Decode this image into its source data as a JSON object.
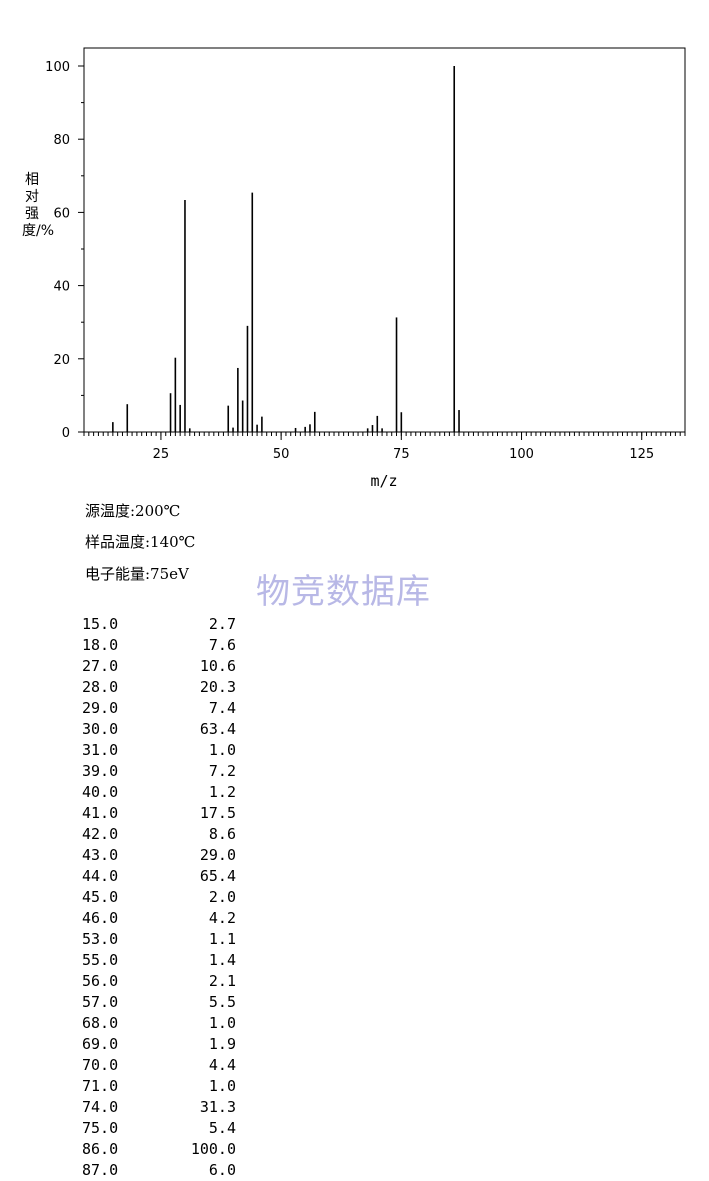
{
  "chart_data": {
    "type": "bar",
    "xlabel": "m/z",
    "ylabel": "相对强度/%",
    "xlim": [
      9,
      134
    ],
    "ylim": [
      0,
      100
    ],
    "x_ticks": [
      25,
      50,
      75,
      100,
      125
    ],
    "y_ticks": [
      0,
      20,
      40,
      60,
      80,
      100
    ],
    "grid": false,
    "x": [
      15,
      18,
      27,
      28,
      29,
      30,
      31,
      39,
      40,
      41,
      42,
      43,
      44,
      45,
      46,
      53,
      55,
      56,
      57,
      68,
      69,
      70,
      71,
      74,
      75,
      86,
      87
    ],
    "values": [
      2.7,
      7.6,
      10.6,
      20.3,
      7.4,
      63.4,
      1.0,
      7.2,
      1.2,
      17.5,
      8.6,
      29.0,
      65.4,
      2.0,
      4.2,
      1.1,
      1.4,
      2.1,
      5.5,
      1.0,
      1.9,
      4.4,
      1.0,
      31.3,
      5.4,
      100.0,
      6.0
    ]
  },
  "conditions": [
    {
      "label": "源温度:200℃"
    },
    {
      "label": "样品温度:140℃"
    },
    {
      "label": "电子能量:75eV"
    }
  ],
  "watermark": "物竞数据库",
  "peak_table": [
    {
      "mz": "15.0",
      "abundance": "2.7"
    },
    {
      "mz": "18.0",
      "abundance": "7.6"
    },
    {
      "mz": "27.0",
      "abundance": "10.6"
    },
    {
      "mz": "28.0",
      "abundance": "20.3"
    },
    {
      "mz": "29.0",
      "abundance": "7.4"
    },
    {
      "mz": "30.0",
      "abundance": "63.4"
    },
    {
      "mz": "31.0",
      "abundance": "1.0"
    },
    {
      "mz": "39.0",
      "abundance": "7.2"
    },
    {
      "mz": "40.0",
      "abundance": "1.2"
    },
    {
      "mz": "41.0",
      "abundance": "17.5"
    },
    {
      "mz": "42.0",
      "abundance": "8.6"
    },
    {
      "mz": "43.0",
      "abundance": "29.0"
    },
    {
      "mz": "44.0",
      "abundance": "65.4"
    },
    {
      "mz": "45.0",
      "abundance": "2.0"
    },
    {
      "mz": "46.0",
      "abundance": "4.2"
    },
    {
      "mz": "53.0",
      "abundance": "1.1"
    },
    {
      "mz": "55.0",
      "abundance": "1.4"
    },
    {
      "mz": "56.0",
      "abundance": "2.1"
    },
    {
      "mz": "57.0",
      "abundance": "5.5"
    },
    {
      "mz": "68.0",
      "abundance": "1.0"
    },
    {
      "mz": "69.0",
      "abundance": "1.9"
    },
    {
      "mz": "70.0",
      "abundance": "4.4"
    },
    {
      "mz": "71.0",
      "abundance": "1.0"
    },
    {
      "mz": "74.0",
      "abundance": "31.3"
    },
    {
      "mz": "75.0",
      "abundance": "5.4"
    },
    {
      "mz": "86.0",
      "abundance": "100.0"
    },
    {
      "mz": "87.0",
      "abundance": "6.0"
    }
  ]
}
